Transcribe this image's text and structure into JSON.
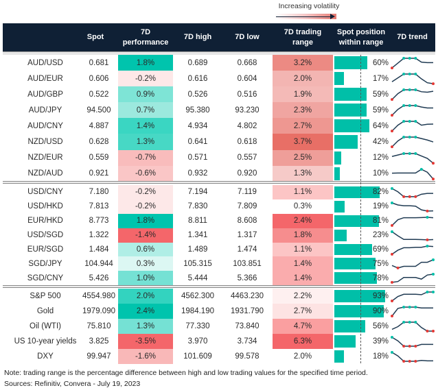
{
  "legend": {
    "label": "Increasing volatility"
  },
  "colors": {
    "header": "#0f2035",
    "marker_max": "#00bfa8",
    "marker_min": "#e53935",
    "bar": "#00bfa8",
    "line": "#1f3a52"
  },
  "chart_data": {
    "type": "table",
    "columns": [
      "",
      "Spot",
      "7D performance",
      "7D high",
      "7D low",
      "7D trading range",
      "Spot position within range",
      "7D trend"
    ],
    "groups": [
      [
        {
          "name": "AUD/USD",
          "spot": "0.681",
          "perf": "1.8%",
          "high": "0.689",
          "low": "0.668",
          "range": "3.2%",
          "pos": 60,
          "pos_label": "60%",
          "perf_color": "#00c4ad",
          "range_color": "#ec8a83",
          "trend": [
            0,
            0.5,
            1,
            1,
            1,
            0.6,
            0.55,
            0.55
          ]
        },
        {
          "name": "AUD/EUR",
          "spot": "0.606",
          "perf": "-0.2%",
          "high": "0.616",
          "low": "0.604",
          "range": "2.0%",
          "pos": 17,
          "pos_label": "17%",
          "perf_color": "#fde8e8",
          "range_color": "#f3b5b2",
          "trend": [
            0.2,
            0.6,
            1,
            1,
            1,
            0.5,
            0.1,
            0
          ]
        },
        {
          "name": "AUD/GBP",
          "spot": "0.522",
          "perf": "0.9%",
          "high": "0.526",
          "low": "0.516",
          "range": "1.9%",
          "pos": 59,
          "pos_label": "59%",
          "perf_color": "#7ee4d6",
          "range_color": "#f4baB7",
          "trend": [
            0,
            0.6,
            1,
            1,
            1,
            0.8,
            0.75,
            0.85
          ]
        },
        {
          "name": "AUD/JPY",
          "spot": "94.500",
          "perf": "0.7%",
          "high": "95.380",
          "low": "93.230",
          "range": "2.3%",
          "pos": 59,
          "pos_label": "59%",
          "perf_color": "#9ce9de",
          "range_color": "#f0a5a1",
          "trend": [
            0,
            0.6,
            1,
            1,
            1,
            0.85,
            0.75,
            0.75
          ]
        },
        {
          "name": "AUD/CNY",
          "spot": "4.887",
          "perf": "1.4%",
          "high": "4.934",
          "low": "4.802",
          "range": "2.7%",
          "pos": 64,
          "pos_label": "64%",
          "perf_color": "#3ad6c2",
          "range_color": "#ee9791",
          "trend": [
            0,
            0.6,
            1,
            1,
            1,
            0.6,
            0.7,
            0.72
          ]
        },
        {
          "name": "NZD/USD",
          "spot": "0.628",
          "perf": "1.3%",
          "high": "0.641",
          "low": "0.618",
          "range": "3.7%",
          "pos": 42,
          "pos_label": "42%",
          "perf_color": "#47d8c5",
          "range_color": "#e86f66",
          "trend": [
            0,
            0.6,
            1,
            1,
            1,
            0.85,
            0.7,
            0.5
          ]
        },
        {
          "name": "NZD/EUR",
          "spot": "0.559",
          "perf": "-0.7%",
          "high": "0.571",
          "low": "0.557",
          "range": "2.5%",
          "pos": 12,
          "pos_label": "12%",
          "perf_color": "#f9bcbc",
          "range_color": "#ef9e99",
          "trend": [
            0.7,
            0.85,
            1,
            1,
            1,
            0.75,
            0.5,
            0
          ]
        },
        {
          "name": "NZD/AUD",
          "spot": "0.921",
          "perf": "-0.6%",
          "high": "0.932",
          "low": "0.920",
          "range": "1.3%",
          "pos": 10,
          "pos_label": "10%",
          "perf_color": "#fac6c6",
          "range_color": "#f6cac8",
          "trend": [
            0.6,
            0.62,
            0.62,
            0.62,
            0.62,
            1,
            0.7,
            0
          ]
        }
      ],
      [
        {
          "name": "USD/CNY",
          "spot": "7.180",
          "perf": "-0.2%",
          "high": "7.194",
          "low": "7.119",
          "range": "1.1%",
          "pos": 82,
          "pos_label": "82%",
          "perf_color": "#fde8e8",
          "range_color": "#fcc5c5",
          "trend": [
            1,
            0.6,
            0,
            0,
            0,
            0.3,
            0.4,
            0.4
          ]
        },
        {
          "name": "USD/HKD",
          "spot": "7.813",
          "perf": "-0.2%",
          "high": "7.830",
          "low": "7.809",
          "range": "0.3%",
          "pos": 19,
          "pos_label": "19%",
          "perf_color": "#fde8e8",
          "range_color": "#ffffff",
          "trend": [
            1,
            0.75,
            0.65,
            0.65,
            0.6,
            0.15,
            0,
            0.02
          ]
        },
        {
          "name": "EUR/HKD",
          "spot": "8.773",
          "perf": "1.8%",
          "high": "8.811",
          "low": "8.608",
          "range": "2.4%",
          "pos": 81,
          "pos_label": "81%",
          "perf_color": "#00c4ad",
          "range_color": "#f4666a",
          "trend": [
            0,
            0.7,
            0.95,
            0.95,
            0.95,
            0.97,
            1,
            0.95
          ]
        },
        {
          "name": "USD/SGD",
          "spot": "1.322",
          "perf": "-1.4%",
          "high": "1.341",
          "low": "1.317",
          "range": "1.8%",
          "pos": 23,
          "pos_label": "23%",
          "perf_color": "#f4666a",
          "range_color": "#f68d8e",
          "trend": [
            1,
            0.5,
            0.05,
            0.05,
            0.05,
            0.03,
            0,
            0.03
          ]
        },
        {
          "name": "EUR/SGD",
          "spot": "1.484",
          "perf": "0.6%",
          "high": "1.489",
          "low": "1.474",
          "range": "1.1%",
          "pos": 69,
          "pos_label": "69%",
          "perf_color": "#b0eee6",
          "range_color": "#fcc5c5",
          "trend": [
            0,
            0.5,
            0.8,
            0.8,
            0.85,
            0.85,
            1,
            0.95
          ]
        },
        {
          "name": "SGD/JPY",
          "spot": "104.944",
          "perf": "0.3%",
          "high": "105.315",
          "low": "103.851",
          "range": "1.4%",
          "pos": 75,
          "pos_label": "75%",
          "perf_color": "#dcf7f3",
          "range_color": "#faacad",
          "trend": [
            0.3,
            0,
            0.2,
            0.2,
            0.2,
            0.7,
            0.7,
            1
          ]
        },
        {
          "name": "SGD/CNY",
          "spot": "5.426",
          "perf": "1.0%",
          "high": "5.444",
          "low": "5.366",
          "range": "1.4%",
          "pos": 78,
          "pos_label": "78%",
          "perf_color": "#75e1d4",
          "range_color": "#faacad",
          "trend": [
            0,
            0.1,
            0.6,
            0.6,
            0.6,
            0.4,
            0.9,
            1
          ]
        }
      ],
      [
        {
          "name": "S&P 500",
          "spot": "4554.980",
          "perf": "2.0%",
          "high": "4562.300",
          "low": "4463.230",
          "range": "2.2%",
          "pos": 93,
          "pos_label": "93%",
          "perf_color": "#33d3bf",
          "range_color": "#fef0f0",
          "trend": [
            0,
            0.5,
            0.75,
            0.75,
            0.75,
            0.7,
            1,
            1
          ]
        },
        {
          "name": "Gold",
          "spot": "1979.090",
          "perf": "2.4%",
          "high": "1984.190",
          "low": "1931.790",
          "range": "2.7%",
          "pos": 90,
          "pos_label": "90%",
          "perf_color": "#00c4ad",
          "range_color": "#fde3e3",
          "trend": [
            0,
            0.85,
            1,
            1,
            1,
            0.9,
            0.9,
            0.9
          ]
        },
        {
          "name": "Oil (WTI)",
          "spot": "75.810",
          "perf": "1.3%",
          "high": "77.330",
          "low": "73.840",
          "range": "4.7%",
          "pos": 56,
          "pos_label": "56%",
          "perf_color": "#75e1d4",
          "range_color": "#fa9fa0",
          "trend": [
            0.2,
            0.5,
            1,
            1,
            1,
            0.4,
            0,
            0
          ]
        },
        {
          "name": "US 10-year yields",
          "spot": "3.825",
          "perf": "-3.5%",
          "high": "3.970",
          "low": "3.734",
          "range": "6.3%",
          "pos": 39,
          "pos_label": "39%",
          "perf_color": "#f4666a",
          "range_color": "#f4666a",
          "trend": [
            1,
            0.6,
            0,
            0,
            0,
            0.2,
            0.2,
            0.2
          ]
        },
        {
          "name": "DXY",
          "spot": "99.947",
          "perf": "-1.6%",
          "high": "101.609",
          "low": "99.578",
          "range": "2.0%",
          "pos": 18,
          "pos_label": "18%",
          "perf_color": "#f9b8b8",
          "range_color": "#ffffff",
          "trend": [
            1,
            0.6,
            0,
            0,
            0,
            0.1,
            0.05,
            0.05
          ]
        }
      ]
    ]
  },
  "header": {
    "spot": "Spot",
    "perf": "7D performance",
    "high": "7D high",
    "low": "7D low",
    "range": "7D trading range",
    "pos": "Spot position within range",
    "trend": "7D trend"
  },
  "footer": {
    "note": "Note: trading range is the percentage difference between high and low trading values for the specified time period.",
    "sources": "Sources: Refinitiv, Convera - July 19, 2023"
  }
}
